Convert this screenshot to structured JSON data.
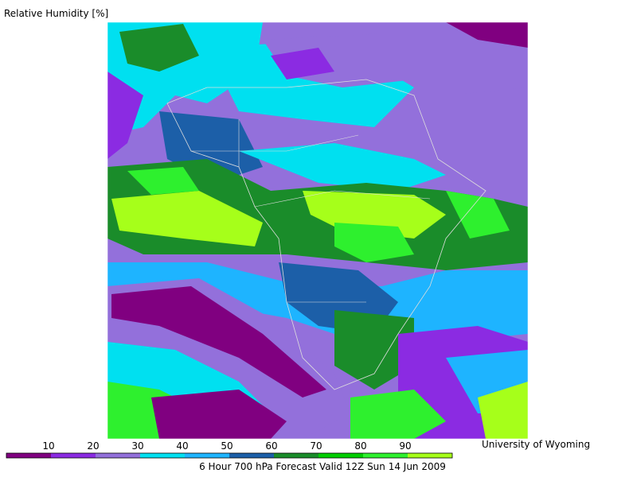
{
  "title": "Relative Humidity [%]",
  "credit": "University of Wyoming",
  "caption": "6 Hour 700 hPa Forecast Valid 12Z Sun 14 Jun 2009",
  "colorbar": {
    "levels": [
      10,
      20,
      30,
      40,
      50,
      60,
      70,
      80,
      90
    ],
    "colors": [
      "#800080",
      "#8b2be2",
      "#9370db",
      "#00e0f0",
      "#1eb4ff",
      "#1c5fa8",
      "#1a8c2a",
      "#00cd00",
      "#2ef02e",
      "#a6ff1a"
    ]
  }
}
